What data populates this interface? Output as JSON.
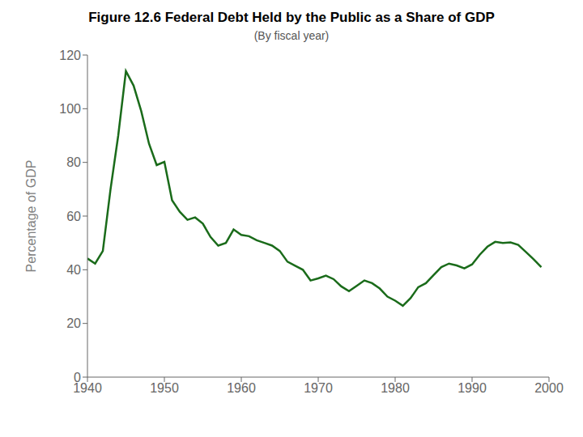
{
  "chart_data": {
    "type": "line",
    "title": "Figure 12.6 Federal Debt Held by the Public as a Share of GDP",
    "subtitle": "(By fiscal year)",
    "ylabel": "Percentage of GDP",
    "color": "#1a6b1a",
    "grid": false,
    "xlim": [
      1940,
      2000
    ],
    "ylim": [
      0,
      120
    ],
    "xticks": [
      1940,
      1950,
      1960,
      1970,
      1980,
      1990,
      2000
    ],
    "yticks": [
      0,
      20,
      40,
      60,
      80,
      100,
      120
    ],
    "x": [
      1940,
      1941,
      1942,
      1943,
      1944,
      1945,
      1946,
      1947,
      1948,
      1949,
      1950,
      1951,
      1952,
      1953,
      1954,
      1955,
      1956,
      1957,
      1958,
      1959,
      1960,
      1961,
      1962,
      1963,
      1964,
      1965,
      1966,
      1967,
      1968,
      1969,
      1970,
      1971,
      1972,
      1973,
      1974,
      1975,
      1976,
      1977,
      1978,
      1979,
      1980,
      1981,
      1982,
      1983,
      1984,
      1985,
      1986,
      1987,
      1988,
      1989,
      1990,
      1991,
      1992,
      1993,
      1994,
      1995,
      1996,
      1997,
      1998,
      1999
    ],
    "values": [
      44.2,
      42.3,
      47.0,
      70.0,
      90.0,
      114.0,
      108.6,
      99.0,
      87.0,
      79.0,
      80.2,
      65.9,
      61.6,
      58.6,
      59.5,
      57.2,
      52.2,
      49.0,
      50.0,
      55.0,
      53.0,
      52.5,
      51.0,
      50.0,
      49.0,
      47.0,
      43.0,
      41.5,
      40.0,
      36.0,
      36.8,
      37.8,
      36.5,
      33.8,
      32.0,
      34.0,
      36.0,
      35.0,
      33.0,
      30.0,
      28.5,
      26.6,
      29.4,
      33.5,
      35.0,
      38.0,
      41.0,
      42.3,
      41.6,
      40.5,
      42.0,
      45.6,
      48.6,
      50.4,
      50.0,
      50.2,
      49.3,
      46.6,
      43.9,
      41.0
    ]
  }
}
